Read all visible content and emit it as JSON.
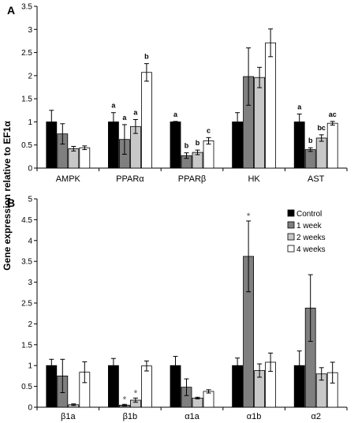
{
  "ylabel": "Gene expression relative to EF1α",
  "legend": [
    {
      "label": "Control",
      "color": "#000000"
    },
    {
      "label": "1 week",
      "color": "#7f7f7f"
    },
    {
      "label": "2 weeks",
      "color": "#c8c8c8"
    },
    {
      "label": "4 weeks",
      "color": "#ffffff"
    }
  ],
  "chart_data": [
    {
      "type": "bar",
      "panel": "A",
      "categories": [
        "AMPK",
        "PPARα",
        "PPARβ",
        "HK",
        "AST"
      ],
      "ylim": [
        0,
        3.5
      ],
      "yticks": [
        "0",
        "0.5",
        "1",
        "1.5",
        "2",
        "2.5",
        "3",
        "3.5"
      ],
      "series": [
        {
          "name": "Control",
          "values": [
            1.0,
            1.0,
            1.0,
            1.0,
            1.0
          ],
          "errors": [
            0.25,
            0.2,
            0.01,
            0.2,
            0.17
          ]
        },
        {
          "name": "1 week",
          "values": [
            0.74,
            0.62,
            0.27,
            1.98,
            0.4
          ],
          "errors": [
            0.22,
            0.32,
            0.06,
            0.62,
            0.04
          ]
        },
        {
          "name": "2 weeks",
          "values": [
            0.42,
            0.9,
            0.34,
            1.96,
            0.65
          ],
          "errors": [
            0.05,
            0.15,
            0.05,
            0.22,
            0.07
          ]
        },
        {
          "name": "4 weeks",
          "values": [
            0.44,
            2.07,
            0.59,
            2.71,
            0.97
          ],
          "errors": [
            0.04,
            0.19,
            0.07,
            0.3,
            0.04
          ]
        }
      ],
      "annotations": [
        {
          "category": 1,
          "series": 0,
          "text": "a"
        },
        {
          "category": 1,
          "series": 1,
          "text": "a"
        },
        {
          "category": 1,
          "series": 2,
          "text": "a"
        },
        {
          "category": 1,
          "series": 3,
          "text": "b"
        },
        {
          "category": 2,
          "series": 0,
          "text": "a"
        },
        {
          "category": 2,
          "series": 1,
          "text": "b"
        },
        {
          "category": 2,
          "series": 2,
          "text": "b"
        },
        {
          "category": 2,
          "series": 3,
          "text": "c"
        },
        {
          "category": 4,
          "series": 0,
          "text": "a"
        },
        {
          "category": 4,
          "series": 1,
          "text": "b"
        },
        {
          "category": 4,
          "series": 2,
          "text": "bc"
        },
        {
          "category": 4,
          "series": 3,
          "text": "ac"
        }
      ]
    },
    {
      "type": "bar",
      "panel": "B",
      "categories": [
        "β1a",
        "β1b",
        "α1a",
        "α1b",
        "α2"
      ],
      "ylim": [
        0,
        5
      ],
      "yticks": [
        "0",
        "0.5",
        "1",
        "1.5",
        "2",
        "2.5",
        "3",
        "3.5",
        "4",
        "4.5",
        "5"
      ],
      "series": [
        {
          "name": "Control",
          "values": [
            1.0,
            1.0,
            1.0,
            1.0,
            1.0
          ],
          "errors": [
            0.15,
            0.17,
            0.22,
            0.18,
            0.35
          ]
        },
        {
          "name": "1 week",
          "values": [
            0.75,
            0.05,
            0.48,
            3.62,
            2.38
          ],
          "errors": [
            0.4,
            0.02,
            0.2,
            0.85,
            0.8
          ]
        },
        {
          "name": "2 weeks",
          "values": [
            0.06,
            0.17,
            0.22,
            0.88,
            0.8
          ],
          "errors": [
            0.02,
            0.05,
            0.02,
            0.16,
            0.15
          ]
        },
        {
          "name": "4 weeks",
          "values": [
            0.84,
            0.99,
            0.38,
            1.08,
            0.83
          ],
          "errors": [
            0.25,
            0.12,
            0.04,
            0.22,
            0.25
          ]
        }
      ],
      "annotations": [
        {
          "category": 1,
          "series": 1,
          "text": "*"
        },
        {
          "category": 1,
          "series": 2,
          "text": "*"
        },
        {
          "category": 3,
          "series": 1,
          "text": "*"
        }
      ]
    }
  ]
}
